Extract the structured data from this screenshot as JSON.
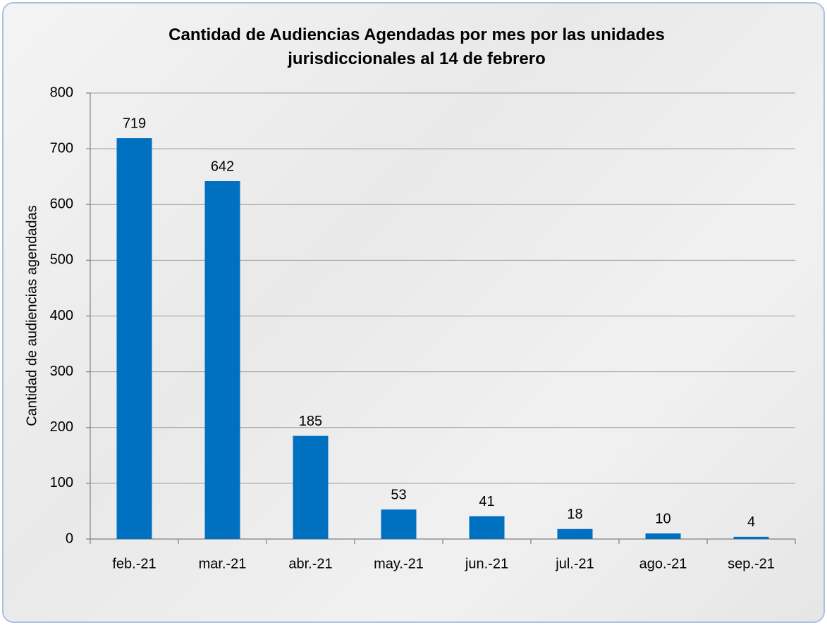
{
  "chart_data": {
    "type": "bar",
    "title": "Cantidad de Audiencias Agendadas por mes por las unidades jurisdiccionales al 14 de febrero",
    "y_label": "Cantidad de audiencias agendadas",
    "categories": [
      "feb.-21",
      "mar.-21",
      "abr.-21",
      "may.-21",
      "jun.-21",
      "jul.-21",
      "ago.-21",
      "sep.-21"
    ],
    "values": [
      719,
      642,
      185,
      53,
      41,
      18,
      10,
      4
    ],
    "color": "#0070c0",
    "ylim": [
      0,
      800
    ],
    "yticks": [
      0,
      100,
      200,
      300,
      400,
      500,
      600,
      700,
      800
    ],
    "grid": true
  }
}
